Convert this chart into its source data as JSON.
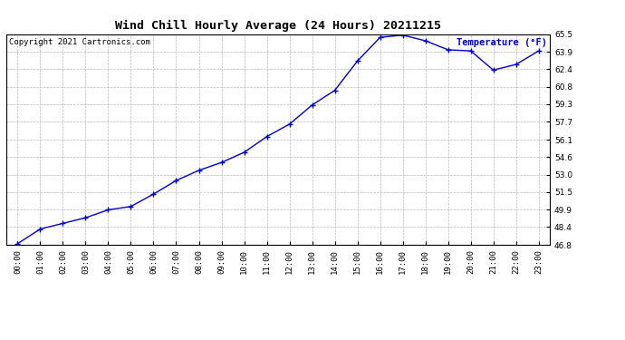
{
  "title": "Wind Chill Hourly Average (24 Hours) 20211215",
  "copyright_text": "Copyright 2021 Cartronics.com",
  "legend_label": "Temperature (°F)",
  "hours": [
    "00:00",
    "01:00",
    "02:00",
    "03:00",
    "04:00",
    "05:00",
    "06:00",
    "07:00",
    "08:00",
    "09:00",
    "10:00",
    "11:00",
    "12:00",
    "13:00",
    "14:00",
    "15:00",
    "16:00",
    "17:00",
    "18:00",
    "19:00",
    "20:00",
    "21:00",
    "22:00",
    "23:00"
  ],
  "values": [
    46.9,
    48.2,
    48.7,
    49.2,
    49.9,
    50.2,
    51.3,
    52.5,
    53.4,
    54.1,
    55.0,
    56.4,
    57.5,
    59.2,
    60.5,
    63.1,
    65.2,
    65.4,
    64.9,
    64.1,
    64.0,
    62.3,
    62.8,
    64.0
  ],
  "ylim_min": 46.8,
  "ylim_max": 65.5,
  "yticks": [
    46.8,
    48.4,
    49.9,
    51.5,
    53.0,
    54.6,
    56.1,
    57.7,
    59.3,
    60.8,
    62.4,
    63.9,
    65.5
  ],
  "line_color": "#0000cc",
  "marker": "+",
  "marker_color": "#0000cc",
  "grid_color": "#b0b0b0",
  "background_color": "#ffffff",
  "title_fontsize": 9.5,
  "copyright_fontsize": 6.5,
  "legend_color": "#0000cc",
  "legend_fontsize": 7.5,
  "tick_fontsize": 6.5,
  "figure_width": 6.9,
  "figure_height": 3.75,
  "dpi": 100
}
